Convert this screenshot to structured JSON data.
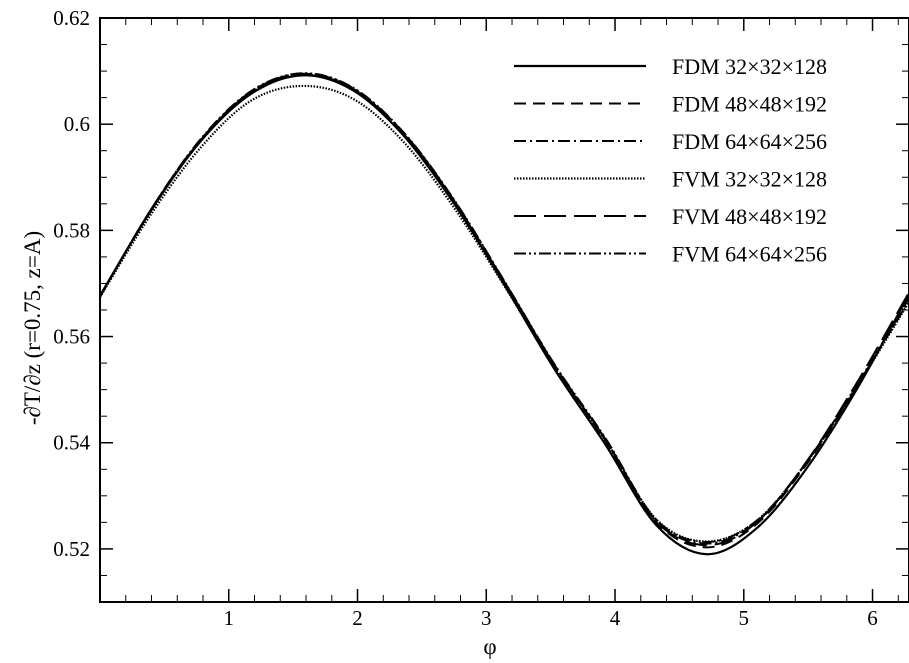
{
  "chart_data": {
    "type": "line",
    "title": "",
    "xlabel": "φ",
    "ylabel": "-∂T/∂z (r=0.75, z=A)",
    "xlim": [
      0,
      6.2832
    ],
    "ylim": [
      0.51,
      0.62
    ],
    "x_ticks": [
      1,
      2,
      3,
      4,
      5,
      6
    ],
    "x_tick_labels": [
      "1",
      "2",
      "3",
      "4",
      "5",
      "6"
    ],
    "y_ticks": [
      0.52,
      0.54,
      0.56,
      0.58,
      0.6,
      0.62
    ],
    "y_tick_labels": [
      "0.52",
      "0.54",
      "0.56",
      "0.58",
      "0.6",
      "0.62"
    ],
    "grid": false,
    "legend_position": "top-right",
    "x": [
      0,
      0.3927,
      0.7854,
      1.1781,
      1.5708,
      1.9635,
      2.3562,
      2.7489,
      3.1416,
      3.5343,
      3.927,
      4.3197,
      4.7124,
      5.1051,
      5.4978,
      5.8905,
      6.2832
    ],
    "series": [
      {
        "name": "FDM 32×32×128",
        "line_style": "solid",
        "values": [
          0.5677,
          0.5836,
          0.5969,
          0.6058,
          0.6092,
          0.6064,
          0.5979,
          0.5851,
          0.5697,
          0.5537,
          0.5396,
          0.5245,
          0.519,
          0.524,
          0.5355,
          0.5506,
          0.568
        ]
      },
      {
        "name": "FDM 48×48×192",
        "line_style": "dashed",
        "values": [
          0.5676,
          0.5837,
          0.5971,
          0.6061,
          0.6094,
          0.6067,
          0.5983,
          0.5856,
          0.5702,
          0.5543,
          0.5403,
          0.525,
          0.5203,
          0.5248,
          0.5363,
          0.551,
          0.5673
        ]
      },
      {
        "name": "FDM 64×64×256",
        "line_style": "dashdot",
        "values": [
          0.5675,
          0.5838,
          0.5972,
          0.6062,
          0.6095,
          0.6068,
          0.5984,
          0.5857,
          0.5703,
          0.5545,
          0.5406,
          0.5253,
          0.521,
          0.5252,
          0.5366,
          0.5512,
          0.5668
        ]
      },
      {
        "name": "FVM 32×32×128",
        "line_style": "dotted",
        "values": [
          0.5674,
          0.5829,
          0.5957,
          0.6045,
          0.6072,
          0.6048,
          0.5967,
          0.5843,
          0.5695,
          0.554,
          0.5404,
          0.5256,
          0.5214,
          0.5254,
          0.5366,
          0.551,
          0.5665
        ]
      },
      {
        "name": "FVM 48×48×192",
        "line_style": "longdash",
        "values": [
          0.5676,
          0.5837,
          0.5971,
          0.606,
          0.6093,
          0.6066,
          0.5982,
          0.5855,
          0.5702,
          0.5544,
          0.5405,
          0.5252,
          0.5207,
          0.5251,
          0.5368,
          0.5518,
          0.5683
        ]
      },
      {
        "name": "FVM 64×64×256",
        "line_style": "dashdotdot",
        "values": [
          0.5675,
          0.5838,
          0.5973,
          0.6063,
          0.6096,
          0.6069,
          0.5985,
          0.5858,
          0.5704,
          0.5546,
          0.5408,
          0.5255,
          0.5213,
          0.5254,
          0.5367,
          0.5514,
          0.5672
        ]
      }
    ]
  }
}
